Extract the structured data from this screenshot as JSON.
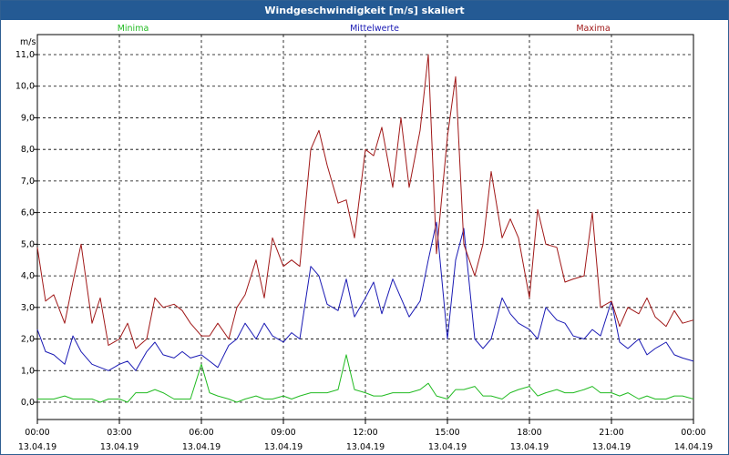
{
  "window": {
    "title": "Windgeschwindigkeit [m/s] skaliert"
  },
  "chart_data": {
    "type": "line",
    "title": "Windgeschwindigkeit [m/s] skaliert",
    "ylabel": "m/s",
    "xlabel": "",
    "ylim": [
      0,
      11
    ],
    "xlim": [
      0,
      24
    ],
    "grid": true,
    "yticks": [
      {
        "value": 0,
        "label": "0,0"
      },
      {
        "value": 1,
        "label": "1,0"
      },
      {
        "value": 2,
        "label": "2,0"
      },
      {
        "value": 3,
        "label": "3,0"
      },
      {
        "value": 4,
        "label": "4,0"
      },
      {
        "value": 5,
        "label": "5,0"
      },
      {
        "value": 6,
        "label": "6,0"
      },
      {
        "value": 7,
        "label": "7,0"
      },
      {
        "value": 8,
        "label": "8,0"
      },
      {
        "value": 9,
        "label": "9,0"
      },
      {
        "value": 10,
        "label": "10,0"
      },
      {
        "value": 11,
        "label": "11,0"
      }
    ],
    "xticks": [
      {
        "value": 0,
        "time": "00:00",
        "date": "13.04.19"
      },
      {
        "value": 3,
        "time": "03:00",
        "date": "13.04.19"
      },
      {
        "value": 6,
        "time": "06:00",
        "date": "13.04.19"
      },
      {
        "value": 9,
        "time": "09:00",
        "date": "13.04.19"
      },
      {
        "value": 12,
        "time": "12:00",
        "date": "13.04.19"
      },
      {
        "value": 15,
        "time": "15:00",
        "date": "13.04.19"
      },
      {
        "value": 18,
        "time": "18:00",
        "date": "13.04.19"
      },
      {
        "value": 21,
        "time": "21:00",
        "date": "13.04.19"
      },
      {
        "value": 24,
        "time": "00:00",
        "date": "14.04.19"
      }
    ],
    "series": [
      {
        "name": "Minima",
        "color": "#22bb22",
        "legend_position": "left",
        "x": [
          0,
          0.3,
          0.6,
          1,
          1.3,
          1.6,
          2,
          2.3,
          2.6,
          3,
          3.3,
          3.6,
          4,
          4.3,
          4.6,
          5,
          5.3,
          5.6,
          6,
          6.3,
          6.6,
          7,
          7.3,
          7.6,
          8,
          8.3,
          8.6,
          9,
          9.3,
          9.6,
          10,
          10.3,
          10.6,
          11,
          11.3,
          11.6,
          12,
          12.3,
          12.6,
          13,
          13.3,
          13.6,
          14,
          14.3,
          14.6,
          15,
          15.3,
          15.6,
          16,
          16.3,
          16.6,
          17,
          17.3,
          17.6,
          18,
          18.3,
          18.6,
          19,
          19.3,
          19.6,
          20,
          20.3,
          20.6,
          21,
          21.3,
          21.6,
          22,
          22.3,
          22.6,
          23,
          23.3,
          23.6,
          24
        ],
        "values": [
          0.1,
          0.1,
          0.1,
          0.2,
          0.1,
          0.1,
          0.1,
          0.0,
          0.1,
          0.1,
          0.0,
          0.3,
          0.3,
          0.4,
          0.3,
          0.1,
          0.1,
          0.1,
          1.2,
          0.3,
          0.2,
          0.1,
          0.0,
          0.1,
          0.2,
          0.1,
          0.1,
          0.2,
          0.1,
          0.2,
          0.3,
          0.3,
          0.3,
          0.4,
          1.5,
          0.4,
          0.3,
          0.2,
          0.2,
          0.3,
          0.3,
          0.3,
          0.4,
          0.6,
          0.2,
          0.1,
          0.4,
          0.4,
          0.5,
          0.2,
          0.2,
          0.1,
          0.3,
          0.4,
          0.5,
          0.2,
          0.3,
          0.4,
          0.3,
          0.3,
          0.4,
          0.5,
          0.3,
          0.3,
          0.2,
          0.3,
          0.1,
          0.2,
          0.1,
          0.1,
          0.2,
          0.2,
          0.1
        ]
      },
      {
        "name": "Mittelwerte",
        "color": "#1a1ab4",
        "legend_position": "center",
        "x": [
          0,
          0.3,
          0.6,
          1,
          1.3,
          1.6,
          2,
          2.3,
          2.6,
          3,
          3.3,
          3.6,
          4,
          4.3,
          4.6,
          5,
          5.3,
          5.6,
          6,
          6.3,
          6.6,
          7,
          7.3,
          7.6,
          8,
          8.3,
          8.6,
          9,
          9.3,
          9.6,
          10,
          10.3,
          10.6,
          11,
          11.3,
          11.6,
          12,
          12.3,
          12.6,
          13,
          13.3,
          13.6,
          14,
          14.3,
          14.6,
          15,
          15.3,
          15.6,
          16,
          16.3,
          16.6,
          17,
          17.3,
          17.6,
          18,
          18.3,
          18.6,
          19,
          19.3,
          19.6,
          20,
          20.3,
          20.6,
          21,
          21.3,
          21.6,
          22,
          22.3,
          22.6,
          23,
          23.3,
          23.6,
          24
        ],
        "values": [
          2.3,
          1.6,
          1.5,
          1.2,
          2.1,
          1.6,
          1.2,
          1.1,
          1.0,
          1.2,
          1.3,
          1.0,
          1.6,
          1.9,
          1.5,
          1.4,
          1.6,
          1.4,
          1.5,
          1.3,
          1.1,
          1.8,
          2.0,
          2.5,
          2.0,
          2.5,
          2.1,
          1.9,
          2.2,
          2.0,
          4.3,
          4.0,
          3.1,
          2.9,
          3.9,
          2.7,
          3.3,
          3.8,
          2.8,
          3.9,
          3.3,
          2.7,
          3.2,
          4.5,
          5.7,
          2.0,
          4.5,
          5.5,
          2.0,
          1.7,
          2.0,
          3.3,
          2.8,
          2.5,
          2.3,
          2.0,
          3.0,
          2.6,
          2.5,
          2.1,
          2.0,
          2.3,
          2.1,
          3.2,
          1.9,
          1.7,
          2.0,
          1.5,
          1.7,
          1.9,
          1.5,
          1.4,
          1.3
        ]
      },
      {
        "name": "Maxima",
        "color": "#a01818",
        "legend_position": "right",
        "x": [
          0,
          0.3,
          0.6,
          1,
          1.3,
          1.6,
          2,
          2.3,
          2.6,
          3,
          3.3,
          3.6,
          4,
          4.3,
          4.6,
          5,
          5.3,
          5.6,
          6,
          6.3,
          6.6,
          7,
          7.3,
          7.6,
          8,
          8.3,
          8.6,
          9,
          9.3,
          9.6,
          10,
          10.3,
          10.6,
          11,
          11.3,
          11.6,
          12,
          12.3,
          12.6,
          13,
          13.3,
          13.6,
          14,
          14.3,
          14.6,
          15,
          15.3,
          15.6,
          16,
          16.3,
          16.6,
          17,
          17.3,
          17.6,
          18,
          18.3,
          18.6,
          19,
          19.3,
          19.6,
          20,
          20.3,
          20.6,
          21,
          21.3,
          21.6,
          22,
          22.3,
          22.6,
          23,
          23.3,
          23.6,
          24
        ],
        "values": [
          4.9,
          3.2,
          3.4,
          2.5,
          3.8,
          5.0,
          2.5,
          3.3,
          1.8,
          2.0,
          2.5,
          1.7,
          2.0,
          3.3,
          3.0,
          3.1,
          2.9,
          2.5,
          2.1,
          2.1,
          2.5,
          2.0,
          3.0,
          3.4,
          4.5,
          3.3,
          5.2,
          4.3,
          4.5,
          4.3,
          8.0,
          8.6,
          7.5,
          6.3,
          6.4,
          5.2,
          8.0,
          7.8,
          8.7,
          6.8,
          9.0,
          6.8,
          8.6,
          11.0,
          4.7,
          8.4,
          10.3,
          5.0,
          4.0,
          5.0,
          7.3,
          5.2,
          5.8,
          5.2,
          3.3,
          6.1,
          5.0,
          4.9,
          3.8,
          3.9,
          4.0,
          6.0,
          3.0,
          3.2,
          2.4,
          3.0,
          2.8,
          3.3,
          2.7,
          2.4,
          2.9,
          2.5,
          2.6
        ]
      }
    ]
  }
}
